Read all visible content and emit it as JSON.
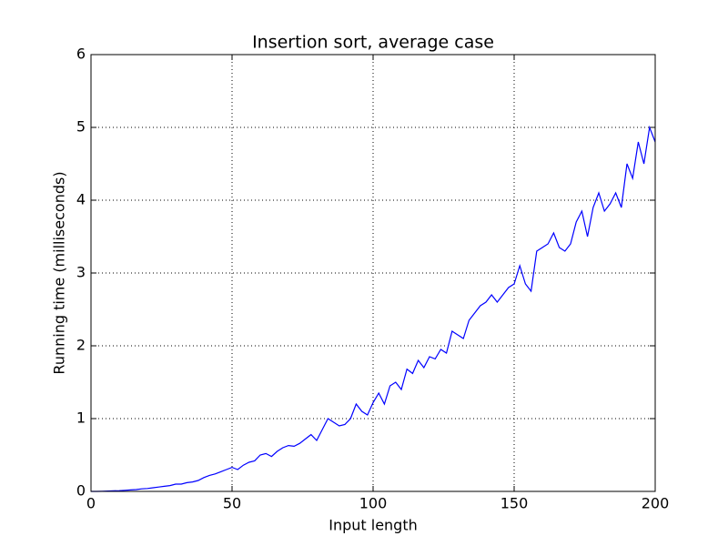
{
  "chart_data": {
    "type": "line",
    "title": "Insertion sort, average case",
    "x_label": "Input length",
    "y_label": "Running time (milliseconds)",
    "x": [
      0,
      2,
      4,
      6,
      8,
      10,
      12,
      14,
      16,
      18,
      20,
      22,
      24,
      26,
      28,
      30,
      32,
      34,
      36,
      38,
      40,
      42,
      44,
      46,
      48,
      50,
      52,
      54,
      56,
      58,
      60,
      62,
      64,
      66,
      68,
      70,
      72,
      74,
      76,
      78,
      80,
      82,
      84,
      86,
      88,
      90,
      92,
      94,
      96,
      98,
      100,
      102,
      104,
      106,
      108,
      110,
      112,
      114,
      116,
      118,
      120,
      122,
      124,
      126,
      128,
      130,
      132,
      134,
      136,
      138,
      140,
      142,
      144,
      146,
      148,
      150,
      152,
      154,
      156,
      158,
      160,
      162,
      164,
      166,
      168,
      170,
      172,
      174,
      176,
      178,
      180,
      182,
      184,
      186,
      188,
      190,
      192,
      194,
      196,
      198,
      200
    ],
    "series": [
      {
        "color": "#0000ff",
        "values": [
          0,
          0,
          0.002,
          0.005,
          0.008,
          0.01,
          0.015,
          0.02,
          0.025,
          0.035,
          0.04,
          0.05,
          0.06,
          0.07,
          0.08,
          0.1,
          0.1,
          0.12,
          0.13,
          0.15,
          0.19,
          0.22,
          0.24,
          0.27,
          0.3,
          0.33,
          0.3,
          0.36,
          0.4,
          0.42,
          0.5,
          0.52,
          0.48,
          0.55,
          0.6,
          0.63,
          0.62,
          0.66,
          0.72,
          0.78,
          0.7,
          0.85,
          1.0,
          0.95,
          0.9,
          0.92,
          1.0,
          1.2,
          1.1,
          1.05,
          1.22,
          1.35,
          1.2,
          1.45,
          1.5,
          1.4,
          1.68,
          1.62,
          1.8,
          1.7,
          1.85,
          1.82,
          1.95,
          1.9,
          2.2,
          2.15,
          2.1,
          2.35,
          2.45,
          2.55,
          2.6,
          2.7,
          2.6,
          2.7,
          2.8,
          2.85,
          3.1,
          2.85,
          2.75,
          3.3,
          3.35,
          3.4,
          3.55,
          3.35,
          3.3,
          3.4,
          3.7,
          3.85,
          3.5,
          3.9,
          4.1,
          3.85,
          3.95,
          4.1,
          3.9,
          4.5,
          4.3,
          4.8,
          4.5,
          5.0,
          4.8
        ]
      }
    ],
    "xlim": [
      0,
      200
    ],
    "xticks": [
      0,
      50,
      100,
      150,
      200
    ],
    "ylim": [
      0,
      6
    ],
    "yticks": [
      0,
      1,
      2,
      3,
      4,
      5,
      6
    ],
    "grid": true
  }
}
